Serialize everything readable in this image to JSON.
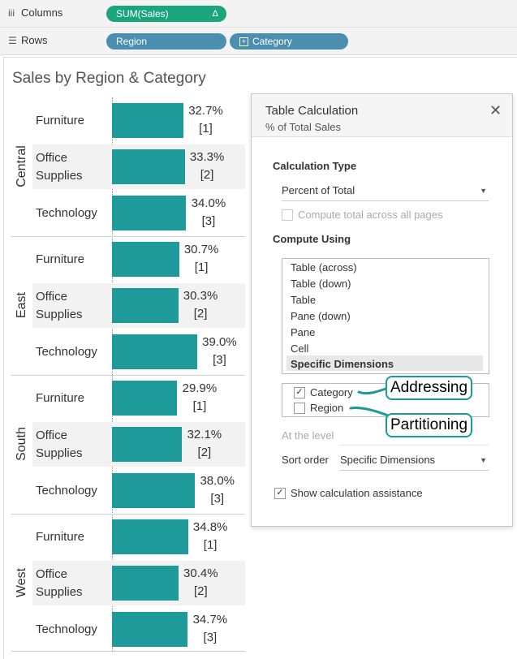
{
  "shelves": {
    "columns": {
      "label": "Columns",
      "icon": "columns-icon",
      "pills": [
        {
          "text": "SUM(Sales)",
          "symbol": "Δ"
        }
      ]
    },
    "rows": {
      "label": "Rows",
      "icon": "rows-icon",
      "pills": [
        {
          "text": "Region"
        },
        {
          "text": "Category"
        }
      ]
    }
  },
  "sheet_title": "Sales by Region & Category",
  "regions": [
    {
      "name": "Central",
      "rows": [
        {
          "category": [
            "Furniture"
          ],
          "pct": "32.7%",
          "rank": "[1]",
          "value": 32.7
        },
        {
          "category": [
            "Office",
            "Supplies"
          ],
          "pct": "33.3%",
          "rank": "[2]",
          "value": 33.3
        },
        {
          "category": [
            "Technology"
          ],
          "pct": "34.0%",
          "rank": "[3]",
          "value": 34.0
        }
      ]
    },
    {
      "name": "East",
      "rows": [
        {
          "category": [
            "Furniture"
          ],
          "pct": "30.7%",
          "rank": "[1]",
          "value": 30.7
        },
        {
          "category": [
            "Office",
            "Supplies"
          ],
          "pct": "30.3%",
          "rank": "[2]",
          "value": 30.3
        },
        {
          "category": [
            "Technology"
          ],
          "pct": "39.0%",
          "rank": "[3]",
          "value": 39.0
        }
      ]
    },
    {
      "name": "South",
      "rows": [
        {
          "category": [
            "Furniture"
          ],
          "pct": "29.9%",
          "rank": "[1]",
          "value": 29.9
        },
        {
          "category": [
            "Office",
            "Supplies"
          ],
          "pct": "32.1%",
          "rank": "[2]",
          "value": 32.1
        },
        {
          "category": [
            "Technology"
          ],
          "pct": "38.0%",
          "rank": "[3]",
          "value": 38.0
        }
      ]
    },
    {
      "name": "West",
      "rows": [
        {
          "category": [
            "Furniture"
          ],
          "pct": "34.8%",
          "rank": "[1]",
          "value": 34.8
        },
        {
          "category": [
            "Office",
            "Supplies"
          ],
          "pct": "30.4%",
          "rank": "[2]",
          "value": 30.4
        },
        {
          "category": [
            "Technology"
          ],
          "pct": "34.7%",
          "rank": "[3]",
          "value": 34.7
        }
      ]
    }
  ],
  "colors": {
    "bar": "#1e9a9a",
    "pill_measure": "#1aa57d",
    "pill_dimension": "#4a8fb0",
    "annotation_border": "#1a9a9a"
  },
  "panel": {
    "title": "Table Calculation",
    "subtitle": "% of Total Sales",
    "calc_type_heading": "Calculation Type",
    "calc_type_value": "Percent of Total",
    "compute_across_label": "Compute total across all pages",
    "compute_across_checked": false,
    "compute_using_heading": "Compute Using",
    "compute_using_options": [
      "Table (across)",
      "Table (down)",
      "Table",
      "Pane (down)",
      "Pane",
      "Cell",
      "Specific Dimensions"
    ],
    "compute_using_selected": "Specific Dimensions",
    "dimensions": [
      {
        "label": "Category",
        "checked": true
      },
      {
        "label": "Region",
        "checked": false
      }
    ],
    "at_level_label": "At the level",
    "sort_order_label": "Sort order",
    "sort_order_value": "Specific Dimensions",
    "show_assist_label": "Show calculation assistance",
    "show_assist_checked": true
  },
  "annotations": {
    "addressing": "Addressing",
    "partitioning": "Partitioning"
  }
}
